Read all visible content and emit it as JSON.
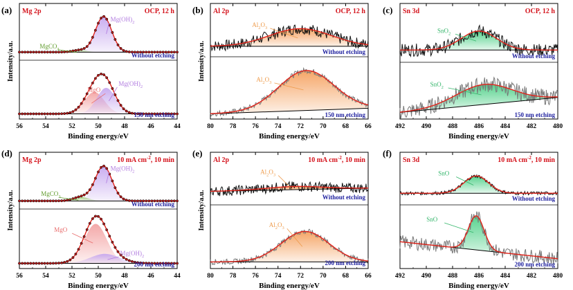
{
  "colors": {
    "frame": "#000000",
    "title_red": "#d4121b",
    "etch_blue": "#1d1f9e",
    "fit_red": "#e2231a",
    "raw_black": "#111111",
    "raw_gray": "#777777",
    "dot_fill": "#b31b1b",
    "mg_oh_fill": "#c6a8ef",
    "mg_oh_label": "#b07adf",
    "mgo_fill": "#f3a3a3",
    "mgo_label": "#e86a6a",
    "mgco3_fill": "#9fca7a",
    "mgco3_label": "#5e9a2a",
    "al_fill": "#f5a15f",
    "al_label": "#ee9a4a",
    "sn_fill": "#4fd088",
    "sn_label": "#33b56a"
  },
  "chart_data": [
    {
      "id": "a",
      "panel_label": "(a)",
      "element": "Mg 2p",
      "condition": "OCP, 12 h",
      "type": "line",
      "xlabel": "Binding energy/eV",
      "ylabel": "Intensity/a.u.",
      "xlim": [
        56,
        44
      ],
      "x_ticks": [
        "56",
        "54",
        "52",
        "50",
        "48",
        "46",
        "44"
      ],
      "x_tick_values": [
        56,
        54,
        52,
        50,
        48,
        46,
        44
      ],
      "spectra": [
        {
          "etch_label": "Without etching",
          "data_style": "dots",
          "noise": 0.0,
          "ylim": [
            0,
            1.0
          ],
          "baseline": [
            0.03,
            0.03
          ],
          "components": [
            {
              "name": "Mg(OH)2",
              "label_main": "Mg(OH)",
              "label_sub": "2",
              "center": 49.6,
              "height": 0.92,
              "fwhm": 1.45,
              "color_key": "mg_oh"
            },
            {
              "name": "MgCO3",
              "label_main": "MgCO",
              "label_sub": "3",
              "center": 51.4,
              "height": 0.05,
              "fwhm": 1.3,
              "color_key": "mgco3"
            }
          ]
        },
        {
          "etch_label": "150 nm etching",
          "data_style": "dots",
          "noise": 0.0,
          "ylim": [
            0,
            1.0
          ],
          "baseline": [
            0.02,
            0.02
          ],
          "components": [
            {
              "name": "MgO",
              "label_main": "MgO",
              "label_sub": "",
              "center": 50.3,
              "height": 0.42,
              "fwhm": 1.8,
              "color_key": "mgo"
            },
            {
              "name": "Mg(OH)2",
              "label_main": "Mg(OH)",
              "label_sub": "2",
              "center": 49.4,
              "height": 0.5,
              "fwhm": 1.7,
              "color_key": "mg_oh"
            }
          ]
        }
      ]
    },
    {
      "id": "b",
      "panel_label": "(b)",
      "element": "Al 2p",
      "condition": "OCP, 12 h",
      "type": "line",
      "xlabel": "Binding energy/eV",
      "ylabel": "Intensity/a.u.",
      "xlim": [
        80,
        66
      ],
      "x_ticks": [
        "80",
        "78",
        "76",
        "74",
        "72",
        "70",
        "68",
        "66"
      ],
      "x_tick_values": [
        80,
        78,
        76,
        74,
        72,
        70,
        68,
        66
      ],
      "spectra": [
        {
          "etch_label": "Without etching",
          "data_style": "noisy",
          "noise": 0.16,
          "raw_color_key": "raw_black",
          "ylim": [
            0,
            1.0
          ],
          "baseline": [
            0.1,
            0.1
          ],
          "components": [
            {
              "name": "Al2O3",
              "label_main": "Al",
              "label_sub": "2",
              "label_tail": "O",
              "label_sub2": "3",
              "center": 72.0,
              "height": 0.5,
              "fwhm": 6.5,
              "color_key": "al"
            }
          ]
        },
        {
          "etch_label": "150 nm etching",
          "data_style": "noisy",
          "noise": 0.05,
          "raw_color_key": "raw_gray",
          "ylim": [
            0,
            1.0
          ],
          "baseline": [
            0.02,
            0.12
          ],
          "components": [
            {
              "name": "Al2O3",
              "label_main": "Al",
              "label_sub": "2",
              "label_tail": "O",
              "label_sub2": "3",
              "center": 71.5,
              "height": 0.72,
              "fwhm": 5.8,
              "color_key": "al"
            }
          ]
        }
      ]
    },
    {
      "id": "c",
      "panel_label": "(c)",
      "element": "Sn 3d",
      "condition": "OCP, 12 h",
      "type": "line",
      "xlabel": "Binding energy/eV",
      "ylabel": "",
      "xlim": [
        492,
        480
      ],
      "x_ticks": [
        "492",
        "490",
        "488",
        "486",
        "484",
        "482",
        "480"
      ],
      "x_tick_values": [
        492,
        490,
        488,
        486,
        484,
        482,
        480
      ],
      "spectra": [
        {
          "etch_label": "Without etching",
          "data_style": "noisy",
          "noise": 0.16,
          "raw_color_key": "raw_black",
          "ylim": [
            0,
            1.0
          ],
          "baseline": [
            0.1,
            0.1
          ],
          "components": [
            {
              "name": "SnO2",
              "label_main": "SnO",
              "label_sub": "2",
              "center": 486.0,
              "height": 0.48,
              "fwhm": 3.2,
              "color_key": "sn"
            }
          ]
        },
        {
          "etch_label": "150 nm etching",
          "data_style": "noisy",
          "noise": 0.16,
          "raw_color_key": "raw_gray",
          "ylim": [
            0,
            1.0
          ],
          "baseline": [
            0.05,
            0.35
          ],
          "components": [
            {
              "name": "SnO2",
              "label_main": "SnO",
              "label_sub": "2",
              "center": 485.6,
              "height": 0.4,
              "fwhm": 5.0,
              "color_key": "sn"
            }
          ]
        }
      ]
    },
    {
      "id": "d",
      "panel_label": "(d)",
      "element": "Mg 2p",
      "condition": "10 mA cm",
      "condition_sup": "-2",
      "condition_tail": ", 10 min",
      "type": "line",
      "xlabel": "Binding energy/eV",
      "ylabel": "Intensity/a.u.",
      "xlim": [
        56,
        44
      ],
      "x_ticks": [
        "56",
        "54",
        "52",
        "50",
        "48",
        "46",
        "44"
      ],
      "x_tick_values": [
        56,
        54,
        52,
        50,
        48,
        46,
        44
      ],
      "spectra": [
        {
          "etch_label": "Without etching",
          "data_style": "dots",
          "noise": 0.0,
          "ylim": [
            0,
            1.0
          ],
          "baseline": [
            0.03,
            0.03
          ],
          "components": [
            {
              "name": "Mg(OH)2",
              "label_main": "Mg(OH)",
              "label_sub": "2",
              "center": 49.6,
              "height": 0.9,
              "fwhm": 1.5,
              "color_key": "mg_oh"
            },
            {
              "name": "MgCO3",
              "label_main": "MgCO",
              "label_sub": "3",
              "center": 51.3,
              "height": 0.1,
              "fwhm": 1.4,
              "color_key": "mgco3"
            }
          ]
        },
        {
          "etch_label": "200 nm etching",
          "data_style": "dots",
          "noise": 0.0,
          "ylim": [
            0,
            1.0
          ],
          "baseline": [
            0.02,
            0.02
          ],
          "components": [
            {
              "name": "MgO",
              "label_main": "MgO",
              "label_sub": "",
              "center": 50.2,
              "height": 0.75,
              "fwhm": 2.0,
              "color_key": "mgo"
            },
            {
              "name": "Mg(OH)2",
              "label_main": "Mg(OH)",
              "label_sub": "2",
              "center": 49.5,
              "height": 0.18,
              "fwhm": 2.6,
              "color_key": "mg_oh"
            }
          ]
        }
      ]
    },
    {
      "id": "e",
      "panel_label": "(e)",
      "element": "Al 2p",
      "condition": "10 mA cm",
      "condition_sup": "-2",
      "condition_tail": ", 10 min",
      "type": "line",
      "xlabel": "Binding energy/eV",
      "ylabel": "Intensity/a.u.",
      "xlim": [
        80,
        66
      ],
      "x_ticks": [
        "80",
        "78",
        "76",
        "74",
        "72",
        "70",
        "68",
        "66"
      ],
      "x_tick_values": [
        80,
        78,
        76,
        74,
        72,
        70,
        68,
        66
      ],
      "spectra": [
        {
          "etch_label": "Without etching",
          "data_style": "noisy",
          "noise": 0.16,
          "raw_color_key": "raw_black",
          "ylim": [
            0,
            1.0
          ],
          "baseline": [
            0.12,
            0.22
          ],
          "components": [
            {
              "name": "Al2O3",
              "label_main": "Al",
              "label_sub": "2",
              "label_tail": "O",
              "label_sub2": "3",
              "center": 72.5,
              "height": 0.1,
              "fwhm": 6.0,
              "color_key": "al"
            }
          ]
        },
        {
          "etch_label": "200 nm etching",
          "data_style": "noisy",
          "noise": 0.05,
          "raw_color_key": "raw_gray",
          "ylim": [
            0,
            1.0
          ],
          "baseline": [
            0.02,
            0.02
          ],
          "components": [
            {
              "name": "Al2O3",
              "label_main": "Al",
              "label_sub": "2",
              "label_tail": "O",
              "label_sub2": "3",
              "center": 71.6,
              "height": 0.55,
              "fwhm": 5.0,
              "color_key": "al"
            }
          ]
        }
      ]
    },
    {
      "id": "f",
      "panel_label": "(f)",
      "element": "Sn 3d",
      "condition": "10 mA cm",
      "condition_sup": "-2",
      "condition_tail": ", 10 min",
      "type": "line",
      "xlabel": "Binding energy/eV",
      "ylabel": "",
      "xlim": [
        492,
        480
      ],
      "x_ticks": [
        "492",
        "490",
        "488",
        "486",
        "484",
        "482",
        "480"
      ],
      "x_tick_values": [
        492,
        490,
        488,
        486,
        484,
        482,
        480
      ],
      "spectra": [
        {
          "etch_label": "Without etching",
          "data_style": "noisy",
          "noise": 0.05,
          "raw_color_key": "raw_black",
          "ylim": [
            0,
            1.0
          ],
          "baseline": [
            0.1,
            0.1
          ],
          "components": [
            {
              "name": "SnO",
              "label_main": "SnO",
              "label_sub": "",
              "center": 486.2,
              "height": 0.52,
              "fwhm": 2.2,
              "color_key": "sn"
            }
          ]
        },
        {
          "etch_label": "200 nm etching",
          "data_style": "noisy",
          "noise": 0.12,
          "raw_color_key": "raw_gray",
          "ylim": [
            0,
            1.0
          ],
          "baseline": [
            0.4,
            0.1
          ],
          "components": [
            {
              "name": "SnO",
              "label_main": "SnO",
              "label_sub": "",
              "center": 486.2,
              "height": 0.6,
              "fwhm": 1.4,
              "color_key": "sn"
            }
          ]
        }
      ]
    }
  ]
}
